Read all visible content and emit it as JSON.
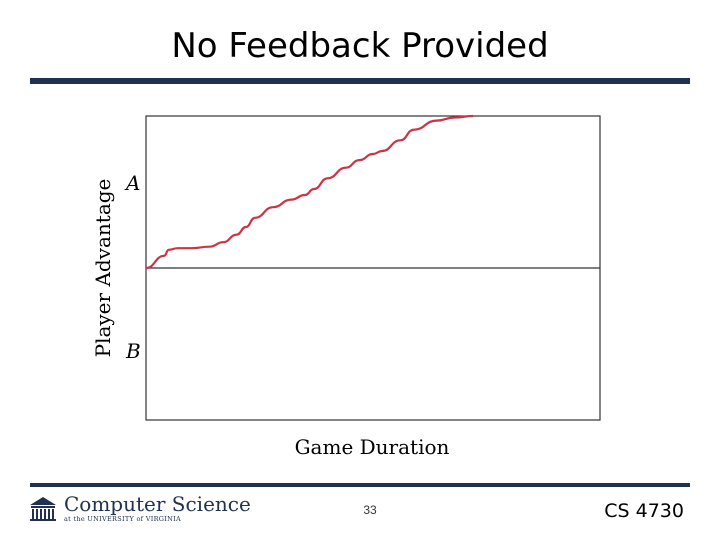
{
  "slide": {
    "title": "No Feedback Provided",
    "page_number": "33",
    "course_code": "CS 4730",
    "logo": {
      "main_text": "Computer Science",
      "sub_text": "at the UNIVERSITY of VIRGINIA"
    },
    "colors": {
      "bar": "#20324f",
      "line": "#cc3344"
    }
  },
  "chart_data": {
    "type": "line",
    "xlabel": "Game Duration",
    "ylabel": "Player Advantage",
    "y_tick_labels": [
      "A",
      "B"
    ],
    "xlim": [
      0,
      1
    ],
    "ylim": [
      -1,
      1
    ],
    "baseline": 0,
    "grid": false,
    "series": [
      {
        "x": [
          0,
          0.04,
          0.05,
          0.07,
          0.1,
          0.14,
          0.17,
          0.2,
          0.22,
          0.24,
          0.28,
          0.32,
          0.35,
          0.37,
          0.4,
          0.44,
          0.47,
          0.5,
          0.52,
          0.56,
          0.59,
          0.64,
          0.68,
          0.72
        ],
        "y": [
          0,
          0.08,
          0.12,
          0.13,
          0.13,
          0.14,
          0.17,
          0.22,
          0.27,
          0.33,
          0.4,
          0.45,
          0.48,
          0.52,
          0.59,
          0.66,
          0.71,
          0.75,
          0.77,
          0.84,
          0.91,
          0.97,
          0.99,
          1.0
        ]
      }
    ]
  }
}
